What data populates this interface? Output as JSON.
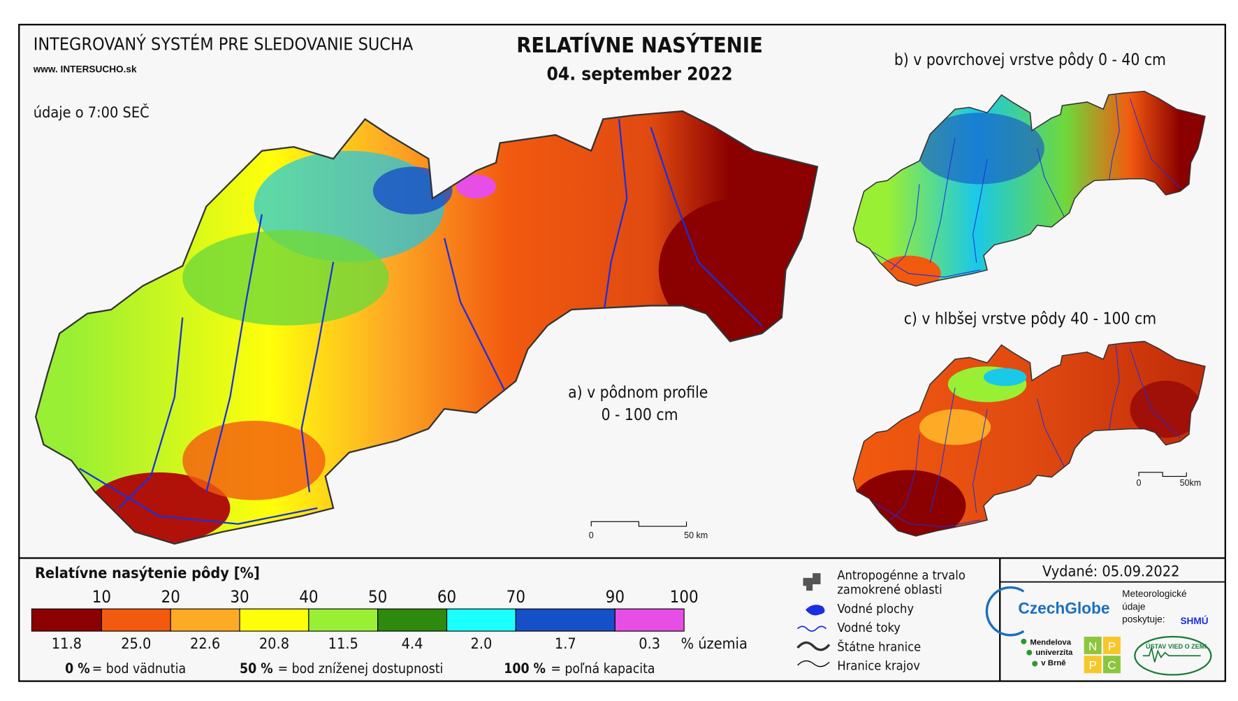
{
  "header": {
    "system": "INTEGROVANÝ SYSTÉM PRE SLEDOVANIE SUCHA",
    "website": "www. INTERSUCHO.sk",
    "data_time": "údaje o 7:00 SEČ",
    "title": "RELATÍVNE NASÝTENIE",
    "date": "04. september 2022"
  },
  "maps": [
    {
      "label": "a) v pôdnom profile",
      "depth": "0 - 100 cm",
      "scale_start": "0",
      "scale_end": "50 km"
    },
    {
      "label": "b) v povrchovej vrstve pôdy 0 - 40 cm"
    },
    {
      "label": "c) v hlbšej vrstve pôdy 40 - 100 cm",
      "scale_start": "0",
      "scale_end": "50km"
    }
  ],
  "legend": {
    "title": "Relatívne nasýtenie pôdy [%]",
    "boundaries": [
      "10",
      "20",
      "30",
      "40",
      "50",
      "60",
      "70",
      "90",
      "100"
    ],
    "colors": [
      "#8b0000",
      "#f25a0f",
      "#fdaa25",
      "#ffff0a",
      "#99ef33",
      "#2d8a0f",
      "#1affff",
      "#1650c8",
      "#e64ee6"
    ],
    "shares": [
      "11.8",
      "25.0",
      "22.6",
      "20.8",
      "11.5",
      "4.4",
      "2.0",
      "1.7",
      "0.3"
    ],
    "shares_unit": "% územia",
    "notes": [
      {
        "value": "0 %",
        "text": "= bod vädnutia"
      },
      {
        "value": "50 %",
        "text": "= bod zníženej dostupnosti"
      },
      {
        "value": "100 %",
        "text": "= poľná kapacita"
      }
    ]
  },
  "map_legend": [
    "Antropogénne a trvalo",
    "zamokrené oblasti",
    "Vodné plochy",
    "Vodné toky",
    "Štátne hranice",
    "Hranice krajov"
  ],
  "footer": {
    "issued": "Vydané: 05.09.2022",
    "czechglobe": "CzechGlobe",
    "meteo": [
      "Meteorologické",
      "údaje",
      "poskytuje:"
    ],
    "shmu": "SHMÚ",
    "mendel": [
      "Mendelova",
      "univerzita",
      "v Brně"
    ],
    "nppc": [
      "N",
      "P",
      "P",
      "C"
    ],
    "uvz": "ÚSTAV VIED O ZEMI"
  }
}
